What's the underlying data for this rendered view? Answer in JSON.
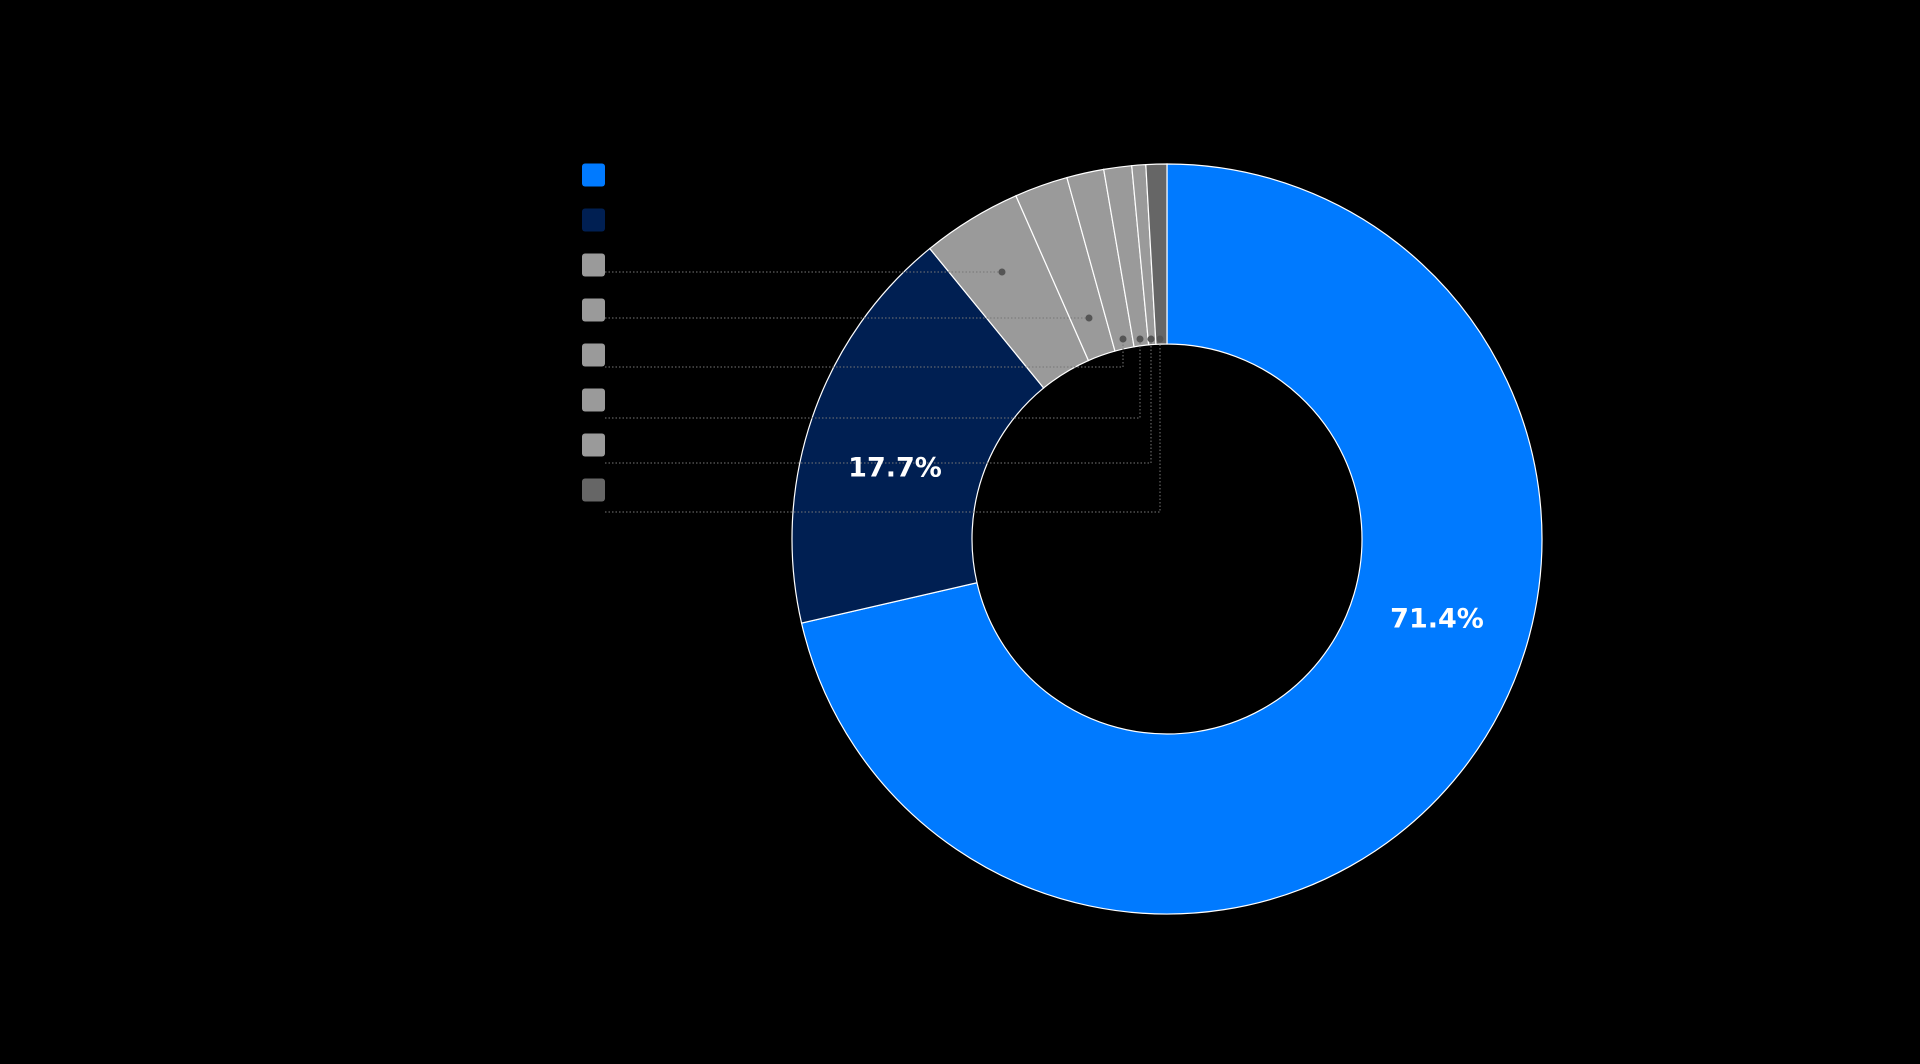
{
  "chart_data": {
    "type": "donut",
    "values": [
      71.4,
      17.7,
      4.3,
      2.3,
      1.6,
      1.2,
      0.6,
      0.9
    ],
    "value_labels": [
      "71.4%",
      "17.7%",
      null,
      null,
      null,
      null,
      null,
      null
    ],
    "colors": [
      "#007aff",
      "#001f52",
      "#9a9a9a",
      "#9a9a9a",
      "#9a9a9a",
      "#9a9a9a",
      "#9a9a9a",
      "#666666"
    ]
  }
}
